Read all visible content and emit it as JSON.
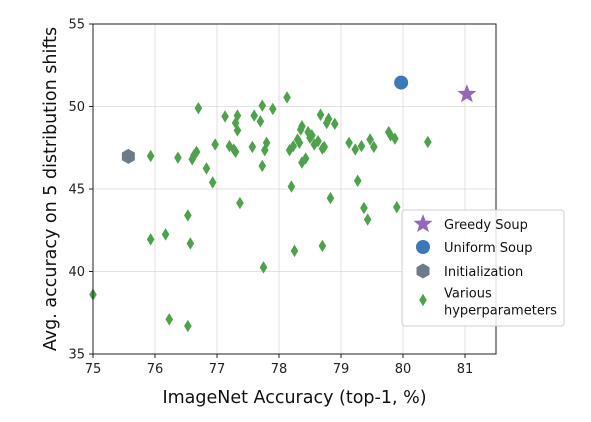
{
  "chart_data": {
    "type": "scatter",
    "xlabel": "ImageNet Accuracy (top-1, %)",
    "ylabel": "Avg. accuracy on 5 distribution shifts",
    "xlim": [
      75,
      81.5
    ],
    "ylim": [
      35,
      55
    ],
    "xticks": [
      75,
      76,
      77,
      78,
      79,
      80,
      81
    ],
    "yticks": [
      35,
      40,
      45,
      50,
      55
    ],
    "grid": true,
    "legend_position": "right",
    "series": [
      {
        "name": "Greedy Soup",
        "marker": "star",
        "color": "#9467bd",
        "points": [
          [
            81.03,
            50.75
          ]
        ]
      },
      {
        "name": "Uniform Soup",
        "marker": "circle",
        "color": "#3c77b9",
        "points": [
          [
            79.97,
            51.45
          ]
        ]
      },
      {
        "name": "Initialization",
        "marker": "hexagon",
        "color": "#6b7b8a",
        "points": [
          [
            75.57,
            46.98
          ]
        ]
      },
      {
        "name": "Various\nhyperparameters",
        "marker": "diamond",
        "color": "#4da24a",
        "points": [
          [
            75.0,
            38.6
          ],
          [
            75.93,
            41.95
          ],
          [
            75.93,
            47.0
          ],
          [
            76.17,
            42.25
          ],
          [
            76.23,
            37.1
          ],
          [
            76.37,
            46.9
          ],
          [
            76.53,
            36.7
          ],
          [
            76.53,
            43.4
          ],
          [
            76.57,
            41.7
          ],
          [
            76.6,
            46.8
          ],
          [
            76.63,
            47.05
          ],
          [
            76.67,
            47.25
          ],
          [
            76.7,
            49.9
          ],
          [
            76.83,
            46.25
          ],
          [
            76.93,
            45.4
          ],
          [
            76.97,
            47.7
          ],
          [
            77.13,
            49.4
          ],
          [
            77.2,
            47.6
          ],
          [
            77.27,
            47.4
          ],
          [
            77.3,
            47.25
          ],
          [
            77.3,
            49.0
          ],
          [
            77.33,
            49.45
          ],
          [
            77.33,
            48.55
          ],
          [
            77.37,
            44.15
          ],
          [
            77.57,
            47.55
          ],
          [
            77.6,
            49.45
          ],
          [
            77.7,
            49.1
          ],
          [
            77.73,
            50.05
          ],
          [
            77.73,
            46.4
          ],
          [
            77.75,
            40.25
          ],
          [
            77.77,
            47.35
          ],
          [
            77.8,
            47.8
          ],
          [
            77.9,
            49.85
          ],
          [
            78.13,
            50.55
          ],
          [
            78.17,
            47.35
          ],
          [
            78.2,
            45.15
          ],
          [
            78.23,
            47.6
          ],
          [
            78.25,
            41.25
          ],
          [
            78.3,
            48.0
          ],
          [
            78.33,
            47.8
          ],
          [
            78.35,
            48.6
          ],
          [
            78.37,
            48.8
          ],
          [
            78.37,
            46.6
          ],
          [
            78.43,
            46.85
          ],
          [
            78.47,
            48.45
          ],
          [
            78.5,
            48.1
          ],
          [
            78.53,
            48.25
          ],
          [
            78.57,
            47.7
          ],
          [
            78.63,
            47.9
          ],
          [
            78.67,
            49.5
          ],
          [
            78.7,
            47.45
          ],
          [
            78.7,
            41.55
          ],
          [
            78.73,
            47.55
          ],
          [
            78.77,
            49.0
          ],
          [
            78.8,
            49.25
          ],
          [
            78.83,
            44.45
          ],
          [
            78.9,
            48.95
          ],
          [
            79.13,
            47.8
          ],
          [
            79.23,
            47.4
          ],
          [
            79.27,
            45.5
          ],
          [
            79.33,
            47.6
          ],
          [
            79.37,
            43.85
          ],
          [
            79.43,
            43.15
          ],
          [
            79.47,
            48.0
          ],
          [
            79.53,
            47.55
          ],
          [
            79.77,
            48.45
          ],
          [
            79.8,
            48.25
          ],
          [
            79.87,
            48.05
          ],
          [
            79.9,
            43.9
          ],
          [
            80.4,
            47.85
          ]
        ]
      }
    ]
  }
}
